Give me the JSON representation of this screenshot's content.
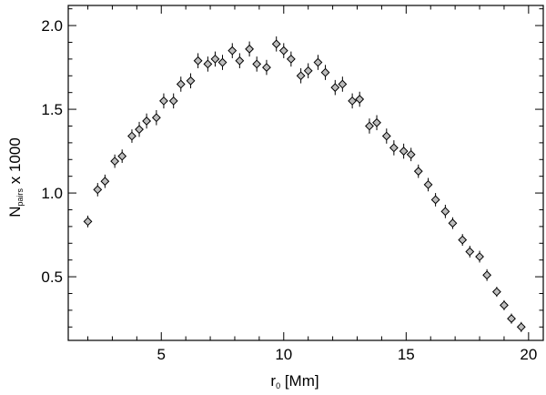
{
  "chart_data": {
    "type": "scatter",
    "xlabel": "r",
    "xlabel_subscript": "0",
    "xlabel_suffix": " [Mm]",
    "ylabel": "N",
    "ylabel_subscript": "pairs",
    "ylabel_suffix": " x 1000",
    "xlim": [
      1.2,
      20.6
    ],
    "ylim": [
      0.12,
      2.12
    ],
    "xticks": [
      5,
      10,
      15,
      20
    ],
    "yticks": [
      0.5,
      1.0,
      1.5,
      2.0
    ],
    "xtick_labels": [
      "5",
      "10",
      "15",
      "20"
    ],
    "ytick_labels": [
      "0.5",
      "1.0",
      "1.5",
      "2.0"
    ],
    "grid": false,
    "marker": "open-diamond",
    "error_bars": true,
    "x": [
      2.0,
      2.4,
      2.7,
      3.1,
      3.4,
      3.8,
      4.1,
      4.4,
      4.8,
      5.1,
      5.5,
      5.8,
      6.2,
      6.5,
      6.9,
      7.2,
      7.5,
      7.9,
      8.2,
      8.6,
      8.9,
      9.3,
      9.7,
      10.0,
      10.3,
      10.7,
      11.0,
      11.4,
      11.7,
      12.1,
      12.4,
      12.8,
      13.1,
      13.5,
      13.8,
      14.2,
      14.5,
      14.9,
      15.2,
      15.5,
      15.9,
      16.2,
      16.6,
      16.9,
      17.3,
      17.6,
      18.0,
      18.3,
      18.7,
      19.0,
      19.3,
      19.7
    ],
    "y": [
      0.83,
      1.02,
      1.07,
      1.19,
      1.22,
      1.34,
      1.38,
      1.43,
      1.45,
      1.55,
      1.55,
      1.65,
      1.67,
      1.79,
      1.77,
      1.8,
      1.78,
      1.85,
      1.79,
      1.86,
      1.77,
      1.75,
      1.89,
      1.85,
      1.8,
      1.7,
      1.73,
      1.78,
      1.72,
      1.63,
      1.65,
      1.55,
      1.56,
      1.4,
      1.42,
      1.34,
      1.27,
      1.25,
      1.23,
      1.13,
      1.05,
      0.96,
      0.89,
      0.82,
      0.72,
      0.65,
      0.62,
      0.51,
      0.41,
      0.33,
      0.25,
      0.2
    ],
    "yerr": [
      0.035,
      0.04,
      0.04,
      0.04,
      0.04,
      0.04,
      0.045,
      0.045,
      0.045,
      0.045,
      0.045,
      0.045,
      0.045,
      0.045,
      0.045,
      0.045,
      0.045,
      0.045,
      0.045,
      0.045,
      0.045,
      0.045,
      0.045,
      0.045,
      0.045,
      0.045,
      0.045,
      0.045,
      0.045,
      0.045,
      0.045,
      0.045,
      0.045,
      0.045,
      0.045,
      0.045,
      0.045,
      0.045,
      0.04,
      0.04,
      0.04,
      0.04,
      0.04,
      0.035,
      0.035,
      0.035,
      0.035,
      0.035,
      0.03,
      0.03,
      0.03,
      0.03
    ]
  },
  "colors": {
    "marker_fill": "#bdbdbd",
    "marker_stroke": "#000000",
    "axis": "#000000"
  }
}
